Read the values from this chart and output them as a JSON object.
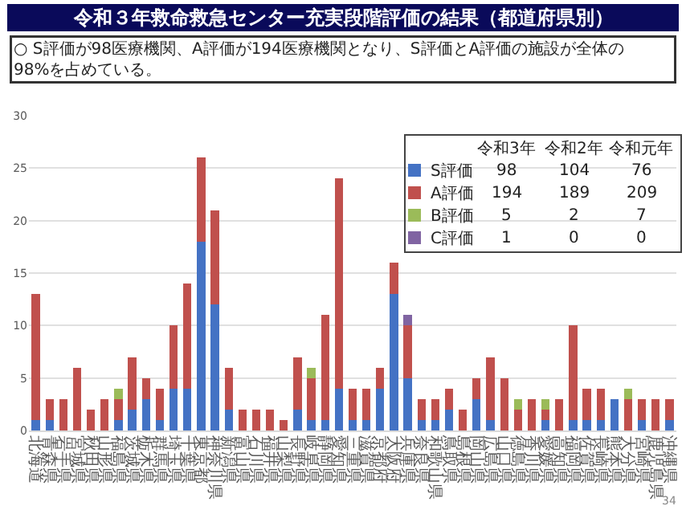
{
  "chart_data": [
    {
      "type": "bar",
      "title": "令和３年救命救急センター充実段階評価の結果（都道府県別）",
      "subtitle": "○ S評価が98医療機関、A評価が194医療機関となり、S評価とA評価の施設が全体の98%を占めている。",
      "stacked": true,
      "grid": "y",
      "categories": [
        "北海道",
        "青森県",
        "岩手県",
        "宮城県",
        "秋田県",
        "山形県",
        "福島県",
        "茨城県",
        "栃木県",
        "群馬県",
        "埼玉県",
        "千葉県",
        "東京都",
        "神奈川県",
        "新潟県",
        "富山県",
        "石川県",
        "福井県",
        "山梨県",
        "長野県",
        "岐阜県",
        "静岡県",
        "愛知県",
        "三重県",
        "滋賀県",
        "京都府",
        "大阪府",
        "兵庫県",
        "奈良県",
        "和歌山県",
        "鳥取県",
        "島根県",
        "岡山県",
        "広島県",
        "山口県",
        "徳島県",
        "香川県",
        "愛媛県",
        "高知県",
        "福岡県",
        "佐賀県",
        "長崎県",
        "熊本県",
        "大分県",
        "宮崎県",
        "鹿児島県",
        "沖縄県"
      ],
      "ylim": [
        0,
        30
      ],
      "yticks": [
        0,
        5,
        10,
        15,
        20,
        25,
        30
      ],
      "series": [
        {
          "color": "#4472c4",
          "values": [
            1,
            1,
            0,
            0,
            0,
            0,
            1,
            2,
            3,
            1,
            4,
            4,
            18,
            12,
            2,
            0,
            0,
            0,
            0,
            2,
            1,
            1,
            4,
            1,
            1,
            4,
            13,
            5,
            1,
            1,
            2,
            0,
            3,
            1,
            0,
            0,
            0,
            1,
            0,
            1,
            1,
            1,
            3,
            0,
            1,
            0,
            1
          ]
        },
        {
          "color": "#c0504d",
          "values": [
            12,
            2,
            3,
            6,
            2,
            3,
            2,
            5,
            2,
            3,
            6,
            10,
            8,
            9,
            4,
            2,
            2,
            2,
            1,
            5,
            4,
            10,
            20,
            3,
            3,
            2,
            3,
            5,
            2,
            2,
            2,
            2,
            2,
            6,
            5,
            2,
            3,
            1,
            3,
            9,
            3,
            3,
            0,
            3,
            2,
            3,
            2
          ]
        },
        {
          "color": "#9bbb59",
          "values": [
            0,
            0,
            0,
            0,
            0,
            0,
            1,
            0,
            0,
            0,
            0,
            0,
            0,
            0,
            0,
            0,
            0,
            0,
            0,
            0,
            1,
            0,
            0,
            0,
            0,
            0,
            0,
            0,
            0,
            0,
            0,
            0,
            0,
            0,
            0,
            1,
            0,
            1,
            0,
            0,
            0,
            0,
            0,
            1,
            0,
            0,
            0
          ]
        },
        {
          "color": "#8064a2",
          "values": [
            0,
            0,
            0,
            0,
            0,
            0,
            0,
            0,
            0,
            0,
            0,
            0,
            0,
            0,
            0,
            0,
            0,
            0,
            0,
            0,
            0,
            0,
            0,
            0,
            0,
            0,
            0,
            1,
            0,
            0,
            0,
            0,
            0,
            0,
            0,
            0,
            0,
            0,
            0,
            0,
            0,
            0,
            0,
            0,
            0,
            0,
            0
          ]
        }
      ],
      "annotations": [
        "34"
      ]
    },
    {
      "type": "other",
      "categories": [
        "令和3年",
        "令和2年",
        "令和元年"
      ],
      "data_labels": true,
      "series": [
        {
          "name": "S評価",
          "color": "#4472c4",
          "values": [
            98,
            104,
            76
          ]
        },
        {
          "name": "A評価",
          "color": "#c0504d",
          "values": [
            194,
            189,
            209
          ]
        },
        {
          "name": "B評価",
          "color": "#9bbb59",
          "values": [
            5,
            2,
            7
          ]
        },
        {
          "name": "C評価",
          "color": "#8064a2",
          "values": [
            1,
            0,
            0
          ]
        }
      ]
    }
  ]
}
